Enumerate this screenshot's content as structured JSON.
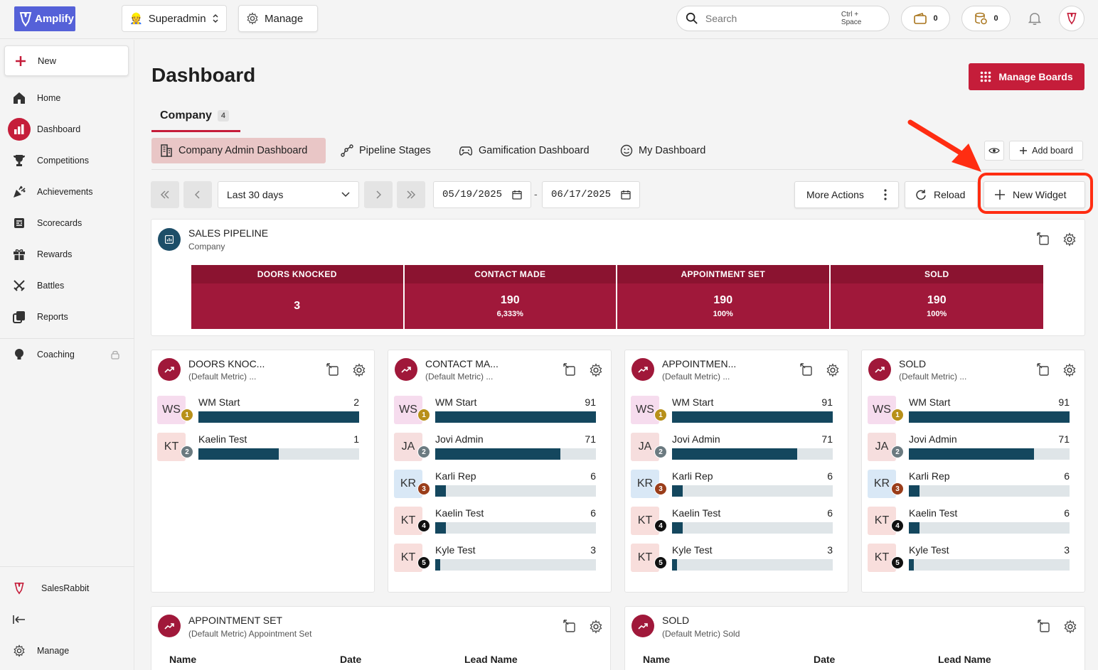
{
  "app": {
    "logo_text": "Amplify"
  },
  "topbar": {
    "role_selector": "Superadmin",
    "manage_label": "Manage",
    "search_placeholder": "Search",
    "search_shortcut": "Ctrl + Space",
    "wallet_count": "0",
    "coins_count": "0"
  },
  "sidebar": {
    "new_label": "New",
    "items": [
      {
        "label": "Home",
        "icon": "home-icon"
      },
      {
        "label": "Dashboard",
        "icon": "bar-chart-icon"
      },
      {
        "label": "Competitions",
        "icon": "trophy-icon"
      },
      {
        "label": "Achievements",
        "icon": "party-icon"
      },
      {
        "label": "Scorecards",
        "icon": "scorecard-icon"
      },
      {
        "label": "Rewards",
        "icon": "gift-icon"
      },
      {
        "label": "Battles",
        "icon": "swords-icon"
      },
      {
        "label": "Reports",
        "icon": "reports-icon"
      },
      {
        "label": "Coaching",
        "icon": "bulb-icon"
      }
    ],
    "bottom": {
      "org_label": "SalesRabbit",
      "manage_label": "Manage"
    }
  },
  "main": {
    "title": "Dashboard",
    "manage_boards_label": "Manage Boards",
    "company_tab": {
      "label": "Company",
      "count": "4"
    },
    "boards": [
      "Company Admin Dashboard",
      "Pipeline Stages",
      "Gamification Dashboard",
      "My Dashboard"
    ],
    "add_board_label": "Add board",
    "date_range": {
      "preset": "Last 30 days",
      "start": "05/19/2025",
      "end": "06/17/2025",
      "separator": "-"
    },
    "more_actions_label": "More Actions",
    "reload_label": "Reload",
    "new_widget_label": "New Widget"
  },
  "colors": {
    "brand": "#c51d3a",
    "funnel_head": "#8b1330",
    "funnel_body": "#a0183a",
    "bar": "#14475e",
    "highlight": "#ff2d12"
  },
  "pipeline": {
    "title": "SALES PIPELINE",
    "subtitle": "Company",
    "stages": [
      {
        "name": "DOORS KNOCKED",
        "value": "3",
        "pct": ""
      },
      {
        "name": "CONTACT MADE",
        "value": "190",
        "pct": "6,333%"
      },
      {
        "name": "APPOINTMENT SET",
        "value": "190",
        "pct": "100%"
      },
      {
        "name": "SOLD",
        "value": "190",
        "pct": "100%"
      }
    ]
  },
  "leaderboards": [
    {
      "title": "DOORS KNOC...",
      "subtitle": "(Default Metric) ...",
      "rows": [
        {
          "initials": "WS",
          "rank": "1",
          "name": "WM Start",
          "value": "2",
          "fill": 1.0
        },
        {
          "initials": "KT",
          "rank": "2",
          "name": "Kaelin Test",
          "value": "1",
          "fill": 0.5
        }
      ]
    },
    {
      "title": "CONTACT MA...",
      "subtitle": "(Default Metric) ...",
      "rows": [
        {
          "initials": "WS",
          "rank": "1",
          "name": "WM Start",
          "value": "91",
          "fill": 1.0
        },
        {
          "initials": "JA",
          "rank": "2",
          "name": "Jovi Admin",
          "value": "71",
          "fill": 0.78
        },
        {
          "initials": "KR",
          "rank": "3",
          "name": "Karli Rep",
          "value": "6",
          "fill": 0.066
        },
        {
          "initials": "KT",
          "rank": "4",
          "name": "Kaelin Test",
          "value": "6",
          "fill": 0.066
        },
        {
          "initials": "KT",
          "rank": "5",
          "name": "Kyle Test",
          "value": "3",
          "fill": 0.033
        }
      ]
    },
    {
      "title": "APPOINTMEN...",
      "subtitle": "(Default Metric) ...",
      "rows": [
        {
          "initials": "WS",
          "rank": "1",
          "name": "WM Start",
          "value": "91",
          "fill": 1.0
        },
        {
          "initials": "JA",
          "rank": "2",
          "name": "Jovi Admin",
          "value": "71",
          "fill": 0.78
        },
        {
          "initials": "KR",
          "rank": "3",
          "name": "Karli Rep",
          "value": "6",
          "fill": 0.066
        },
        {
          "initials": "KT",
          "rank": "4",
          "name": "Kaelin Test",
          "value": "6",
          "fill": 0.066
        },
        {
          "initials": "KT",
          "rank": "5",
          "name": "Kyle Test",
          "value": "3",
          "fill": 0.033
        }
      ]
    },
    {
      "title": "SOLD",
      "subtitle": "(Default Metric) ...",
      "rows": [
        {
          "initials": "WS",
          "rank": "1",
          "name": "WM Start",
          "value": "91",
          "fill": 1.0
        },
        {
          "initials": "JA",
          "rank": "2",
          "name": "Jovi Admin",
          "value": "71",
          "fill": 0.78
        },
        {
          "initials": "KR",
          "rank": "3",
          "name": "Karli Rep",
          "value": "6",
          "fill": 0.066
        },
        {
          "initials": "KT",
          "rank": "4",
          "name": "Kaelin Test",
          "value": "6",
          "fill": 0.066
        },
        {
          "initials": "KT",
          "rank": "5",
          "name": "Kyle Test",
          "value": "3",
          "fill": 0.033
        }
      ]
    }
  ],
  "tables": [
    {
      "title": "APPOINTMENT SET",
      "subtitle": "(Default Metric) Appointment Set",
      "columns": [
        "Name",
        "Date",
        "Lead Name"
      ]
    },
    {
      "title": "SOLD",
      "subtitle": "(Default Metric) Sold",
      "columns": [
        "Name",
        "Date",
        "Lead Name"
      ]
    }
  ]
}
